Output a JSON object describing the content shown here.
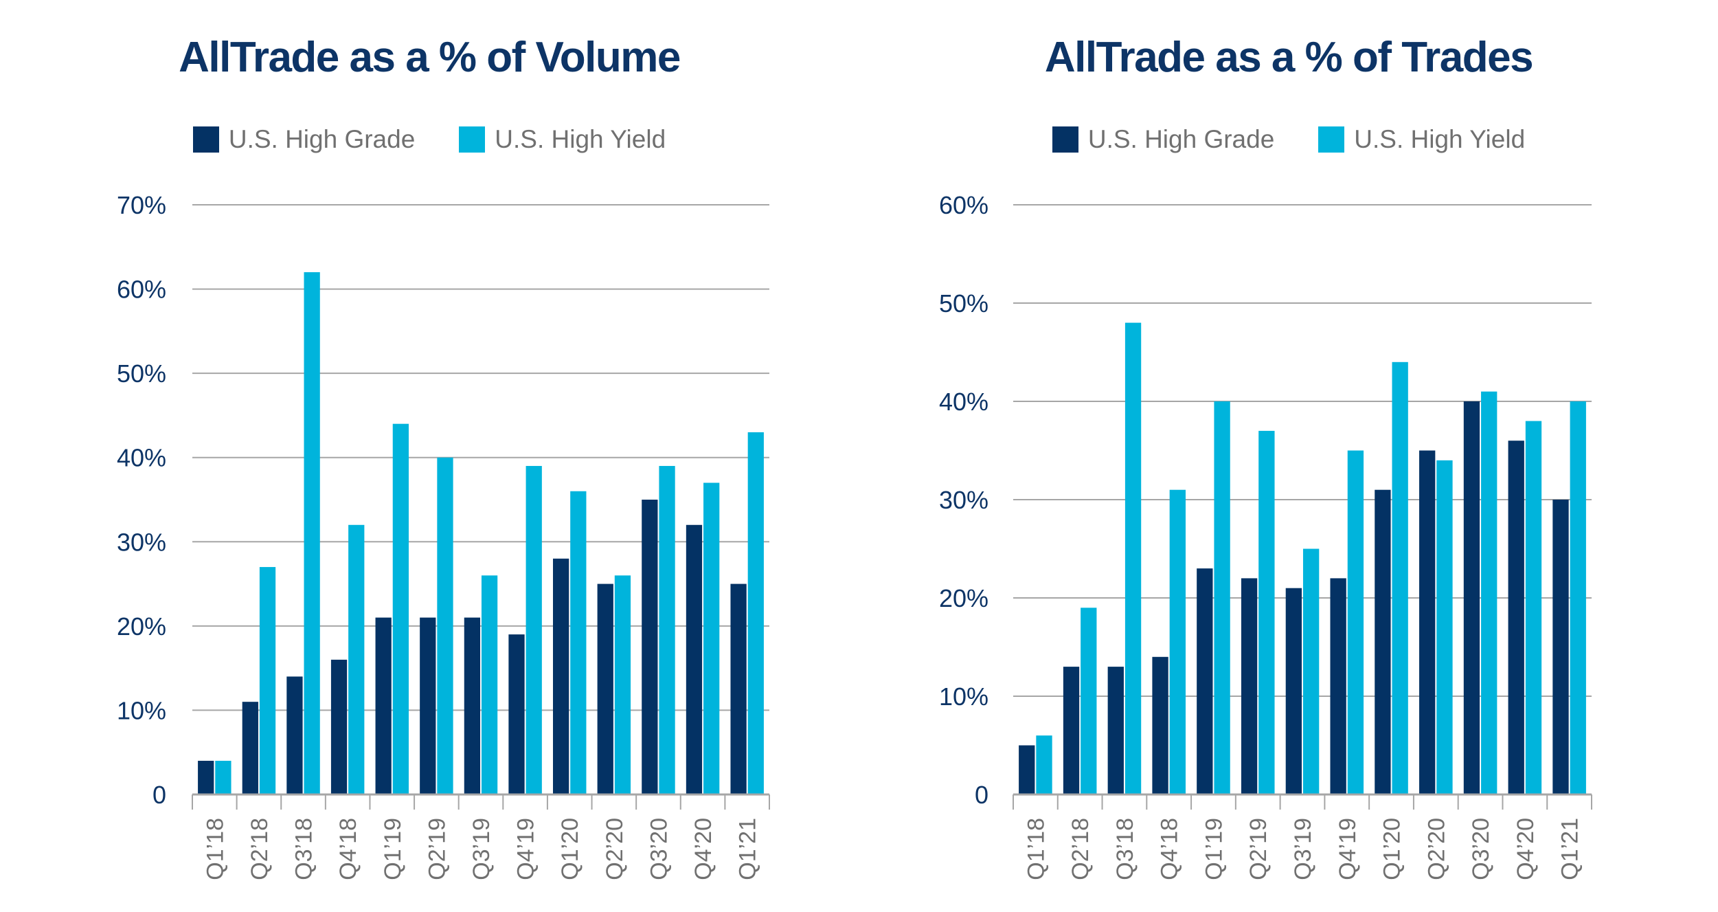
{
  "colors": {
    "high_grade": "#043264",
    "high_yield": "#00b4dc",
    "title": "#0d3466",
    "grid": "#a6a6a6",
    "tick_text": "#707070",
    "y_tick_text": "#0d3466"
  },
  "legend": {
    "high_grade": "U.S. High Grade",
    "high_yield": "U.S. High Yield"
  },
  "chart_data": [
    {
      "type": "bar",
      "title": "AllTrade as a % of Volume",
      "xlabel": "",
      "ylabel": "",
      "categories": [
        "Q1’18",
        "Q2’18",
        "Q3’18",
        "Q4’18",
        "Q1’19",
        "Q2’19",
        "Q3’19",
        "Q4’19",
        "Q1’20",
        "Q2’20",
        "Q3’20",
        "Q4’20",
        "Q1’21"
      ],
      "series": [
        {
          "name": "U.S. High Grade",
          "values": [
            4,
            11,
            14,
            16,
            21,
            21,
            21,
            19,
            28,
            25,
            35,
            32,
            25
          ]
        },
        {
          "name": "U.S. High Yield",
          "values": [
            4,
            27,
            62,
            32,
            44,
            40,
            26,
            39,
            36,
            26,
            39,
            37,
            43
          ]
        }
      ],
      "ylim": [
        0,
        70
      ],
      "yticks": [
        0,
        10,
        20,
        30,
        40,
        50,
        60,
        70
      ],
      "ytick_labels": [
        "0",
        "10%",
        "20%",
        "30%",
        "40%",
        "50%",
        "60%",
        "70%"
      ],
      "grid": true,
      "legend_position": "top"
    },
    {
      "type": "bar",
      "title": "AllTrade as a % of Trades",
      "xlabel": "",
      "ylabel": "",
      "categories": [
        "Q1’18",
        "Q2’18",
        "Q3’18",
        "Q4’18",
        "Q1’19",
        "Q2’19",
        "Q3’19",
        "Q4’19",
        "Q1’20",
        "Q2’20",
        "Q3’20",
        "Q4’20",
        "Q1’21"
      ],
      "series": [
        {
          "name": "U.S. High Grade",
          "values": [
            5,
            13,
            13,
            14,
            23,
            22,
            21,
            22,
            31,
            35,
            40,
            36,
            30
          ]
        },
        {
          "name": "U.S. High Yield",
          "values": [
            6,
            19,
            48,
            31,
            40,
            37,
            25,
            35,
            44,
            34,
            41,
            38,
            40
          ]
        }
      ],
      "ylim": [
        0,
        60
      ],
      "yticks": [
        0,
        10,
        20,
        30,
        40,
        50,
        60
      ],
      "ytick_labels": [
        "0",
        "10%",
        "20%",
        "30%",
        "40%",
        "50%",
        "60%"
      ],
      "grid": true,
      "legend_position": "top"
    }
  ]
}
